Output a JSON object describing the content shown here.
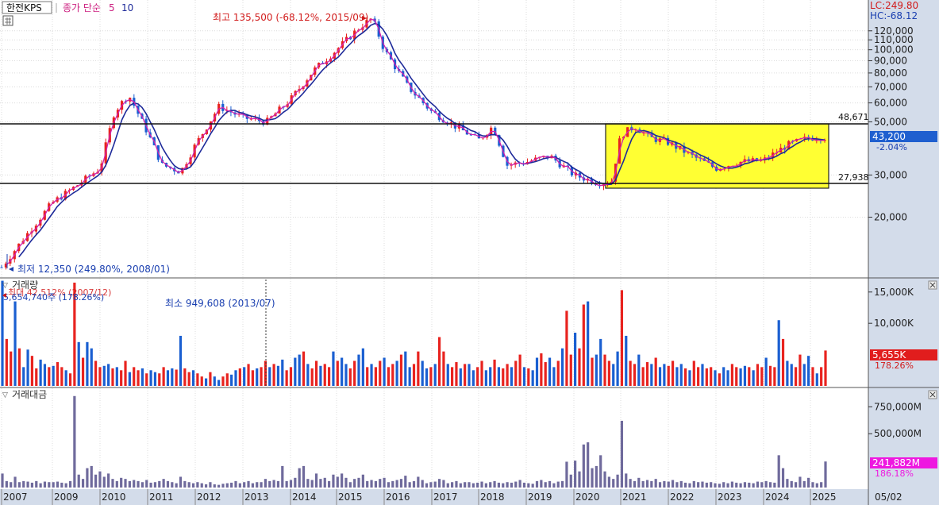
{
  "header": {
    "stock_name": "한전KPS",
    "ma_label": "종가 단순",
    "ma_periods": [
      "5",
      "10"
    ],
    "lc_label": "LC:249.80",
    "hc_label": "HC:-68.12"
  },
  "price_panel": {
    "max_annotation": "최고 135,500 (-68.12%, 2015/09)",
    "min_annotation": "최저 12,350 (249.80%, 2008/01)",
    "current_price": "43,200",
    "current_change": "-2.04%",
    "resistance_label": "48,671",
    "support_label": "27,938",
    "y_ticks": [
      "120,000",
      "110,000",
      "100,000",
      "90,000",
      "80,000",
      "70,000",
      "60,000",
      "50,000",
      "30,000",
      "20,000"
    ]
  },
  "volume_panel": {
    "title": "거래량",
    "max_annotation": "5,654,740주 (178.26%)",
    "max_annotation_overlap": "최대 42,512% (2007/12)",
    "min_annotation": "최소 949,608 (2013/07)",
    "current_value": "5,655K",
    "current_change": "178.26%",
    "y_ticks": [
      "15,000K",
      "10,000K"
    ]
  },
  "amount_panel": {
    "title": "거래대금",
    "current_value": "241,882M",
    "current_change": "186.18%",
    "y_ticks": [
      "750,000M",
      "500,000M"
    ]
  },
  "x_labels": [
    "2007",
    "2009",
    "2010",
    "2011",
    "2012",
    "2013",
    "2014",
    "2015",
    "2016",
    "2017",
    "2018",
    "2019",
    "2020",
    "2021",
    "2022",
    "2023",
    "2024",
    "2025"
  ],
  "date_label": "05/02",
  "colors": {
    "up": "#e8231f",
    "down": "#1a5fd1",
    "ma5": "#d020b0",
    "ma10": "#1e2a9a",
    "amount_bar": "#6f6a9c",
    "box_fill": "#ffff33",
    "axis_bg": "#d3dcea"
  },
  "chart_data": [
    {
      "type": "line",
      "title": "한전KPS",
      "scale": "log",
      "ylim": [
        11500,
        145000
      ],
      "x_ticks": [
        "2007",
        "2009",
        "2010",
        "2011",
        "2012",
        "2013",
        "2014",
        "2015",
        "2016",
        "2017",
        "2018",
        "2019",
        "2020",
        "2021",
        "2022",
        "2023",
        "2024",
        "2025"
      ],
      "series": [
        {
          "name": "종가",
          "x": [
            2008.0,
            2008.5,
            2009.0,
            2009.5,
            2010.0,
            2010.3,
            2010.6,
            2011.0,
            2011.3,
            2011.7,
            2012.0,
            2012.5,
            2013.0,
            2013.5,
            2014.0,
            2014.5,
            2015.0,
            2015.5,
            2015.75,
            2016.0,
            2016.5,
            2017.0,
            2017.5,
            2018.0,
            2018.3,
            2018.6,
            2019.0,
            2019.5,
            2020.0,
            2020.5,
            2020.8,
            2021.0,
            2021.3,
            2021.6,
            2022.0,
            2022.5,
            2023.0,
            2023.5,
            2024.0,
            2024.5,
            2025.0,
            2025.3
          ],
          "values": [
            12350,
            17000,
            23000,
            27000,
            32000,
            55000,
            65000,
            45000,
            33000,
            31000,
            40000,
            58000,
            52000,
            50000,
            62000,
            82000,
            100000,
            125000,
            135500,
            100000,
            70000,
            55000,
            48000,
            42000,
            48000,
            33000,
            34000,
            36000,
            30000,
            27938,
            28000,
            44000,
            48000,
            43000,
            41000,
            36000,
            32000,
            34000,
            34500,
            40000,
            43000,
            43200
          ]
        },
        {
          "name": "5",
          "x": [],
          "values": []
        },
        {
          "name": "10",
          "x": [],
          "values": []
        }
      ],
      "annotations": [
        "최고 135,500 (-68.12%, 2015/09)",
        "최저 12,350 (249.80%, 2008/01)",
        "48,671",
        "27,938",
        "43,200",
        "-2.04%"
      ]
    },
    {
      "type": "bar",
      "title": "거래량",
      "ylim": [
        0,
        17000
      ],
      "unit": "K",
      "values": [
        16800,
        7500,
        5500,
        13500,
        6000,
        3000,
        5800,
        4800,
        2800,
        4200,
        3500,
        3000,
        3200,
        3800,
        3000,
        2500,
        2000,
        16500,
        7000,
        4500,
        7000,
        6000,
        4000,
        3000,
        3200,
        3500,
        2800,
        3000,
        2500,
        4000,
        2200,
        3000,
        2500,
        2800,
        2000,
        2500,
        2200,
        2000,
        3000,
        2500,
        2800,
        2600,
        8000,
        2800,
        2200,
        2500,
        2000,
        1500,
        1200,
        2200,
        1500,
        949,
        1500,
        2000,
        1800,
        2500,
        2800,
        3000,
        3500,
        2500,
        2800,
        3000,
        4000,
        3000,
        3500,
        3200,
        4200,
        2500,
        3000,
        4500,
        5000,
        5500,
        3500,
        2800,
        4000,
        3200,
        3500,
        3000,
        5500,
        4000,
        4500,
        3500,
        2800,
        4000,
        5000,
        6000,
        3000,
        3500,
        3000,
        4000,
        4500,
        3000,
        3500,
        4000,
        5000,
        5500,
        3000,
        3500,
        5500,
        4000,
        2800,
        3000,
        3500,
        7800,
        5500,
        3500,
        3000,
        3800,
        2800,
        3500,
        3500,
        2500,
        3000,
        4000,
        2500,
        3000,
        4200,
        3000,
        2800,
        3500,
        3000,
        4000,
        5000,
        3000,
        2800,
        2500,
        4500,
        5200,
        3800,
        4500,
        3000,
        4000,
        6000,
        12000,
        5000,
        8500,
        6000,
        13000,
        13500,
        4500,
        5000,
        7500,
        5000,
        4000,
        3500,
        5500,
        15300,
        8000,
        4000,
        3500,
        5000,
        3000,
        3800,
        3500,
        4500,
        3000,
        3500,
        3200,
        4000,
        3000,
        3500,
        2800,
        2500,
        4000,
        3000,
        3500,
        2800,
        3000,
        2500,
        2000,
        3000,
        2500,
        3500,
        3000,
        2800,
        3200,
        3000,
        2500,
        3500,
        3000,
        4500,
        3200,
        3000,
        10500,
        7500,
        4000,
        3500,
        3000,
        5000,
        3500,
        4800,
        3000,
        2000,
        3000,
        5655
      ],
      "annotations": [
        "5,654,740주 (178.26%)",
        "최소 949,608 (2013/07)",
        "5,655K",
        "178.26%"
      ]
    },
    {
      "type": "bar",
      "title": "거래대금",
      "ylim": [
        0,
        900000
      ],
      "unit": "M",
      "values": [
        130000,
        60000,
        50000,
        100000,
        50000,
        60000,
        55000,
        45000,
        60000,
        40000,
        55000,
        50000,
        50000,
        55000,
        45000,
        40000,
        60000,
        850000,
        120000,
        80000,
        180000,
        200000,
        120000,
        150000,
        100000,
        130000,
        80000,
        60000,
        90000,
        80000,
        60000,
        70000,
        60000,
        50000,
        70000,
        45000,
        50000,
        60000,
        80000,
        60000,
        50000,
        40000,
        100000,
        60000,
        50000,
        40000,
        50000,
        40000,
        30000,
        50000,
        30000,
        25000,
        35000,
        40000,
        45000,
        60000,
        40000,
        50000,
        60000,
        40000,
        50000,
        50000,
        80000,
        60000,
        70000,
        60000,
        200000,
        60000,
        70000,
        90000,
        180000,
        200000,
        80000,
        70000,
        130000,
        80000,
        90000,
        60000,
        120000,
        100000,
        130000,
        90000,
        50000,
        80000,
        90000,
        120000,
        60000,
        70000,
        60000,
        80000,
        90000,
        50000,
        60000,
        70000,
        80000,
        110000,
        50000,
        60000,
        100000,
        70000,
        40000,
        50000,
        55000,
        80000,
        70000,
        40000,
        50000,
        60000,
        40000,
        50000,
        50000,
        40000,
        45000,
        55000,
        40000,
        50000,
        60000,
        45000,
        40000,
        50000,
        45000,
        55000,
        70000,
        45000,
        40000,
        35000,
        60000,
        70000,
        50000,
        60000,
        40000,
        55000,
        60000,
        240000,
        120000,
        250000,
        150000,
        400000,
        420000,
        180000,
        200000,
        300000,
        150000,
        100000,
        80000,
        120000,
        620000,
        130000,
        80000,
        60000,
        90000,
        60000,
        70000,
        60000,
        80000,
        50000,
        60000,
        55000,
        70000,
        50000,
        60000,
        45000,
        40000,
        60000,
        50000,
        55000,
        45000,
        50000,
        40000,
        35000,
        50000,
        40000,
        55000,
        45000,
        40000,
        50000,
        45000,
        40000,
        55000,
        50000,
        60000,
        50000,
        45000,
        300000,
        180000,
        80000,
        60000,
        50000,
        100000,
        60000,
        90000,
        50000,
        40000,
        50000,
        241882
      ],
      "annotations": [
        "241,882M",
        "186.18%"
      ]
    }
  ]
}
